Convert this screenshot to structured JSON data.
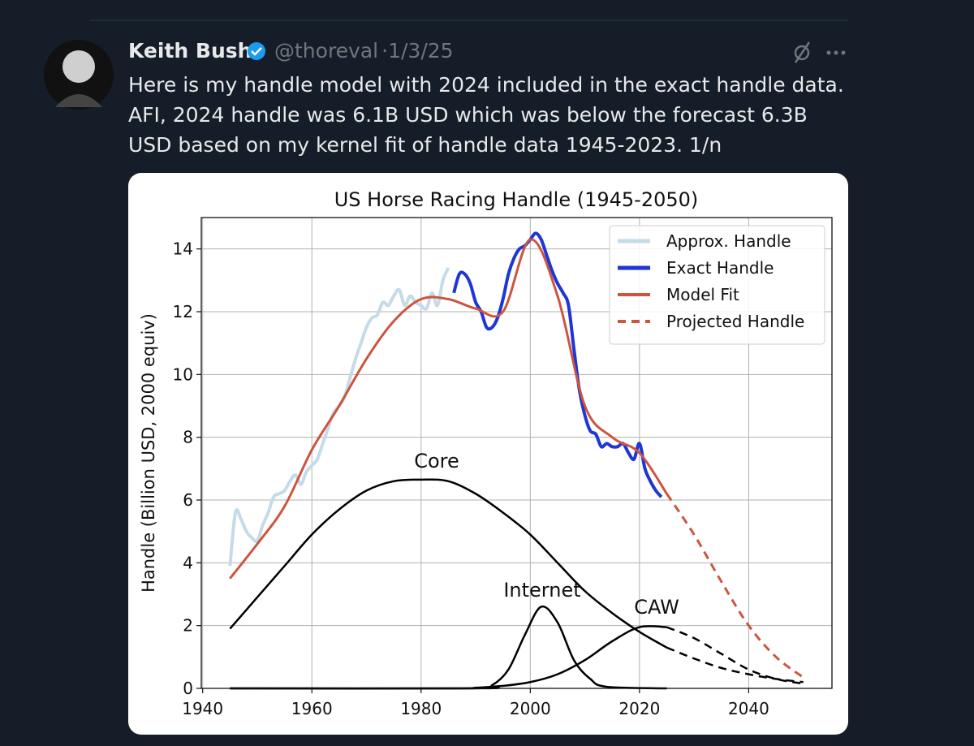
{
  "tweet": {
    "name": "Keith Bush",
    "handle": "@thoreval",
    "separator": "·",
    "date": "1/3/25",
    "text": [
      "Here is my handle model with 2024 included in the exact handle data.",
      "AFI, 2024 handle was 6.1B USD which was below the forecast 6.3B",
      "USD based on my kernel fit of handle data 1945-2023. 1/n"
    ]
  },
  "chart_data": {
    "type": "line",
    "title": "US Horse Racing Handle (1945-2050)",
    "y_label": "Handle (Billion USD, 2000 equiv)",
    "xlim": [
      1939.75,
      2055.25
    ],
    "ylim": [
      0,
      15
    ],
    "xticks": [
      1940,
      1960,
      1980,
      2000,
      2020,
      2040
    ],
    "yticks": [
      0,
      2,
      4,
      6,
      8,
      10,
      12,
      14
    ],
    "grid": true,
    "legend": "upper right",
    "series": [
      {
        "name": "Approx. Handle",
        "color": "#c5dbe8",
        "width": 4,
        "dash": false,
        "x": [
          1945,
          1946,
          1947,
          1948,
          1949,
          1950,
          1951,
          1952,
          1953,
          1954,
          1955,
          1956,
          1957,
          1958,
          1959,
          1960,
          1961,
          1962,
          1963,
          1964,
          1965,
          1966,
          1967,
          1968,
          1969,
          1970,
          1971,
          1972,
          1973,
          1974,
          1975,
          1976,
          1977,
          1978,
          1979,
          1980,
          1981,
          1982,
          1983,
          1984,
          1985
        ],
        "values": [
          3.9,
          5.6,
          5.4,
          5.0,
          4.8,
          4.7,
          5.2,
          5.6,
          6.1,
          6.2,
          6.3,
          6.6,
          6.8,
          6.5,
          6.9,
          7.1,
          7.3,
          7.8,
          8.3,
          8.8,
          9.0,
          9.3,
          9.9,
          10.5,
          11.0,
          11.5,
          11.8,
          11.9,
          12.3,
          12.2,
          12.5,
          12.7,
          12.2,
          12.5,
          12.3,
          12.2,
          12.1,
          12.6,
          12.2,
          13.0,
          13.4
        ]
      },
      {
        "name": "Exact Handle",
        "color": "#1f35d6",
        "width": 4,
        "dash": false,
        "x": [
          1986,
          1987,
          1988,
          1989,
          1990,
          1991,
          1992,
          1993,
          1994,
          1995,
          1996,
          1997,
          1998,
          1999,
          2000,
          2001,
          2002,
          2003,
          2004,
          2005,
          2006,
          2007,
          2008,
          2009,
          2010,
          2011,
          2012,
          2013,
          2014,
          2015,
          2016,
          2017,
          2018,
          2019,
          2020,
          2021,
          2022,
          2023,
          2024
        ],
        "values": [
          12.6,
          13.2,
          13.2,
          12.9,
          12.3,
          12.0,
          11.5,
          11.5,
          11.8,
          12.4,
          13.2,
          13.7,
          14.0,
          14.1,
          14.3,
          14.5,
          14.3,
          13.8,
          13.3,
          12.9,
          12.6,
          12.2,
          10.8,
          9.5,
          8.7,
          8.2,
          8.1,
          7.7,
          7.8,
          7.7,
          7.7,
          7.8,
          7.5,
          7.3,
          7.8,
          7.0,
          6.6,
          6.3,
          6.1
        ]
      },
      {
        "name": "Model Fit",
        "color": "#cc5540",
        "width": 3,
        "dash": false,
        "x": [
          1945,
          1950,
          1955,
          1960,
          1965,
          1970,
          1975,
          1980,
          1985,
          1990,
          1995,
          2000,
          2005,
          2010,
          2015,
          2020,
          2025
        ],
        "values": [
          3.5,
          4.6,
          5.8,
          7.6,
          9.0,
          10.5,
          11.7,
          12.4,
          12.4,
          12.1,
          12.0,
          14.3,
          12.5,
          9.0,
          8.0,
          7.5,
          6.2
        ]
      },
      {
        "name": "Projected Handle",
        "color": "#cc5540",
        "width": 3,
        "dash": true,
        "x": [
          2025,
          2030,
          2035,
          2040,
          2045,
          2050
        ],
        "values": [
          6.2,
          4.9,
          3.4,
          2.0,
          1.0,
          0.35
        ]
      }
    ],
    "components": [
      {
        "label": "Core",
        "color": "#000000",
        "x": [
          1945,
          1950,
          1955,
          1960,
          1965,
          1970,
          1975,
          1980,
          1985,
          1990,
          1995,
          2000,
          2005,
          2010,
          2015,
          2020,
          2025,
          2030,
          2035,
          2040,
          2045,
          2050
        ],
        "values": [
          1.9,
          2.9,
          3.9,
          4.9,
          5.7,
          6.3,
          6.6,
          6.65,
          6.6,
          6.2,
          5.6,
          4.9,
          4.0,
          3.1,
          2.4,
          1.8,
          1.3,
          null,
          null,
          null,
          null,
          null
        ],
        "projected": [
          null,
          null,
          null,
          null,
          null,
          null,
          null,
          null,
          null,
          null,
          null,
          null,
          null,
          null,
          null,
          null,
          1.3,
          0.95,
          0.65,
          0.45,
          0.3,
          0.2
        ]
      },
      {
        "label": "Internet",
        "color": "#000000",
        "x": [
          1945,
          1990,
          1993,
          1996,
          1999,
          2002,
          2005,
          2008,
          2011,
          2014,
          2025
        ],
        "values": [
          0,
          0,
          0.1,
          0.6,
          1.7,
          2.6,
          2.1,
          0.9,
          0.3,
          0.05,
          0
        ],
        "projected": [
          null,
          null,
          null,
          null,
          null,
          null,
          null,
          null,
          null,
          null,
          null
        ]
      },
      {
        "label": "CAW",
        "color": "#000000",
        "x": [
          1945,
          1985,
          1990,
          1995,
          2000,
          2005,
          2010,
          2015,
          2020,
          2025,
          2030,
          2035,
          2040,
          2045,
          2050
        ],
        "values": [
          0,
          0,
          0.02,
          0.08,
          0.2,
          0.45,
          0.9,
          1.5,
          1.95,
          1.95,
          null,
          null,
          null,
          null,
          null
        ],
        "projected": [
          null,
          null,
          null,
          null,
          null,
          null,
          null,
          null,
          null,
          1.95,
          1.6,
          1.1,
          0.6,
          0.3,
          0.15
        ]
      }
    ]
  }
}
